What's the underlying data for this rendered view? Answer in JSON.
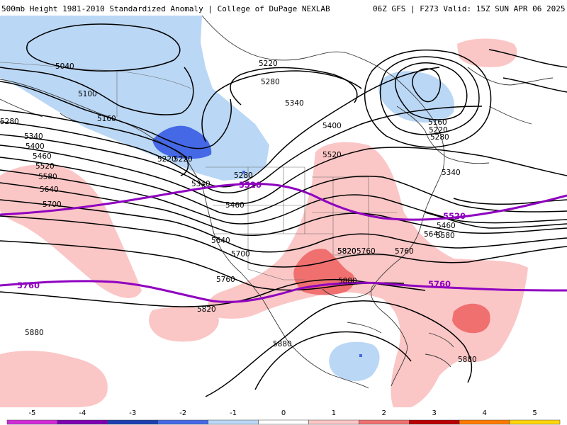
{
  "header": {
    "left_title": "500mb Height 1981-2010 Standardized Anomaly | College of DuPage NEXLAB",
    "right_title": "06Z GFS | F273 Valid: 15Z SUN APR 06 2025"
  },
  "colorbar": {
    "ticks": [
      "-5",
      "-4",
      "-3",
      "-2",
      "-1",
      "0",
      "1",
      "2",
      "3",
      "4",
      "5"
    ],
    "colors": [
      "#d12ad6",
      "#7d00b0",
      "#1a3fb0",
      "#4468e6",
      "#bad7f5",
      "#ffffff",
      "#fbc6c6",
      "#f07070",
      "#b80000",
      "#ff7a00",
      "#ffd60a"
    ]
  },
  "contours": {
    "black_labels": [
      "5040",
      "5100",
      "5160",
      "5220",
      "5280",
      "5340",
      "5400",
      "5460",
      "5520",
      "5580",
      "5640",
      "5700",
      "5760",
      "5820",
      "5880",
      "5220",
      "5280",
      "5340",
      "5400",
      "5520",
      "5220",
      "5280",
      "5340",
      "5460",
      "5640",
      "5700",
      "5760",
      "5820",
      "5880",
      "5160",
      "5220",
      "5280",
      "5340",
      "5460",
      "5580",
      "5640",
      "5760",
      "5820",
      "5880",
      "5880"
    ],
    "purple_labels": [
      "5520",
      "5520",
      "5760",
      "5760"
    ],
    "colors": {
      "height": "#000000",
      "highlight": "#8f00c0",
      "coast": "#3a3a3a"
    }
  }
}
